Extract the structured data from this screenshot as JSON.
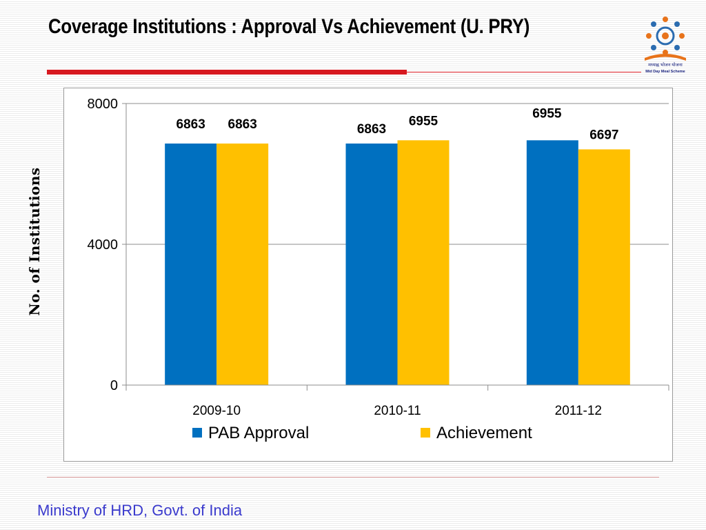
{
  "slide": {
    "title": "Coverage Institutions : Approval Vs Achievement (U. PRY)",
    "footer": "Ministry of HRD, Govt. of India",
    "logo_caption": "मध्याह्न भोजन योजना",
    "logo_caption_en": "Mid Day Meal Scheme"
  },
  "chart_data": {
    "type": "bar",
    "categories": [
      "2009-10",
      "2010-11",
      "2011-12"
    ],
    "series": [
      {
        "name": "PAB Approval",
        "values": [
          6863,
          6863,
          6955
        ],
        "color": "#0070c0"
      },
      {
        "name": "Achievement",
        "values": [
          6863,
          6955,
          6697
        ],
        "color": "#ffc000"
      }
    ],
    "ylabel": "No. of Institutions",
    "ylim": [
      0,
      8000
    ],
    "yticks": [
      0,
      4000,
      8000
    ],
    "grid": true,
    "legend": "bottom",
    "data_labels": true
  }
}
